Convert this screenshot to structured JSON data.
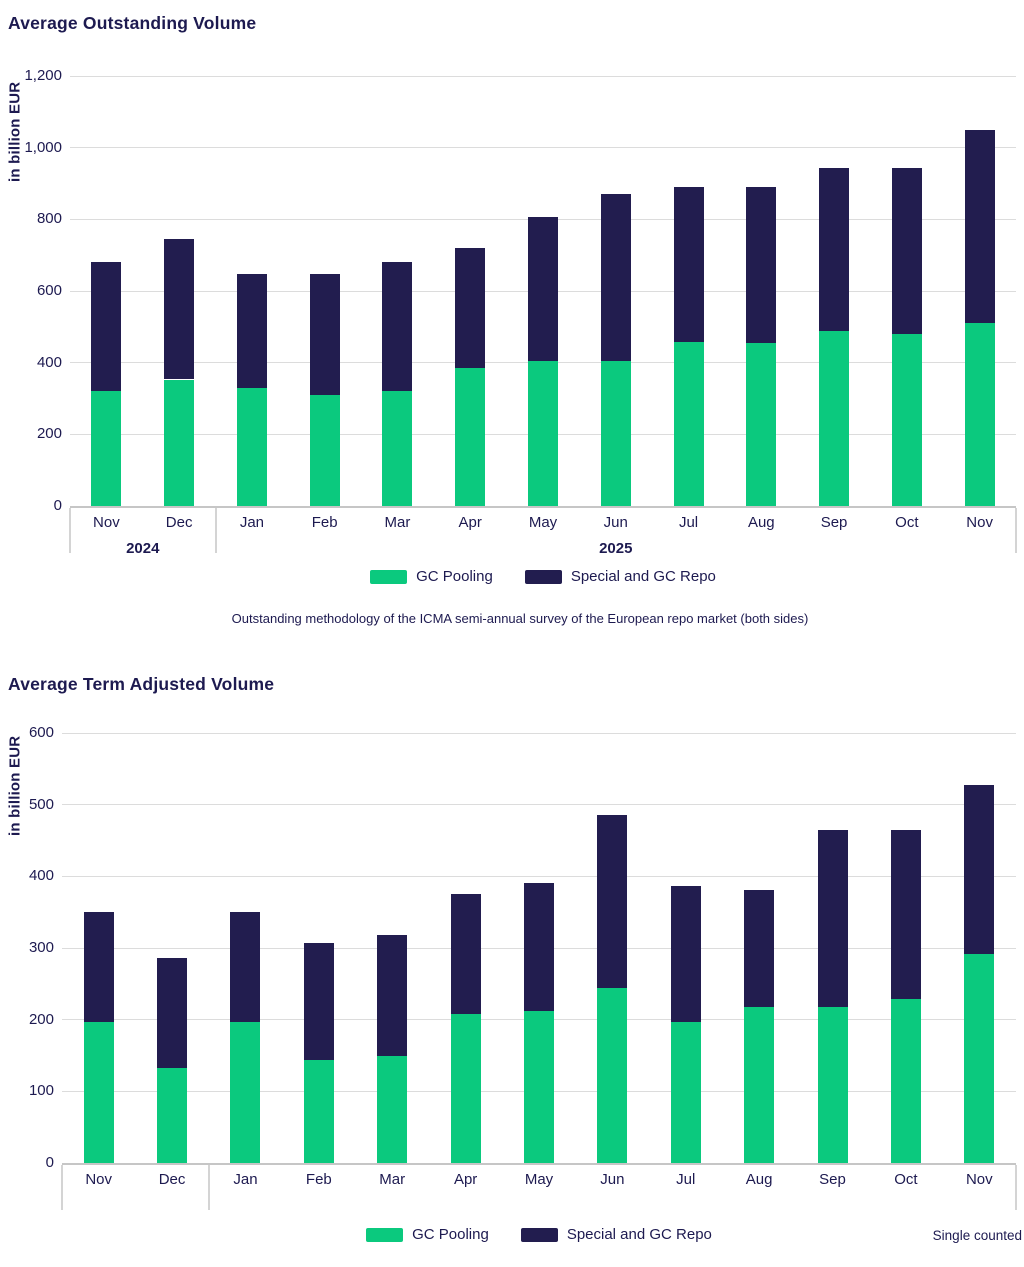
{
  "colors": {
    "gc_pooling": "#0bc97e",
    "special_gc_repo": "#221d4f",
    "text": "#1d1a50",
    "gridline": "#dcdcdc",
    "axis_line": "#c6c6c6"
  },
  "top_chart": {
    "title": "Average Outstanding Volume",
    "y_axis_label": "in billion EUR",
    "legend": {
      "gc_pooling": "GC Pooling",
      "special_gc_repo": "Special and GC Repo"
    },
    "footnote": "Outstanding methodology of the ICMA semi-annual survey of the European repo market (both sides)"
  },
  "bottom_chart": {
    "title": "Average Term Adjusted Volume",
    "y_axis_label": "in billion EUR",
    "legend": {
      "gc_pooling": "GC Pooling",
      "special_gc_repo": "Special and GC Repo"
    },
    "note_right": "Single counted"
  },
  "chart_data": [
    {
      "type": "bar",
      "stacked": true,
      "title": "Average Outstanding Volume",
      "ylabel": "in billion EUR",
      "categories": [
        "Nov",
        "Dec",
        "Jan",
        "Feb",
        "Mar",
        "Apr",
        "May",
        "Jun",
        "Jul",
        "Aug",
        "Sep",
        "Oct",
        "Nov"
      ],
      "year_groups": [
        {
          "label": "2024",
          "from": 0,
          "to": 1
        },
        {
          "label": "2025",
          "from": 2,
          "to": 12
        }
      ],
      "series": [
        {
          "name": "GC Pooling",
          "color_key": "gc_pooling",
          "values": [
            320,
            353,
            330,
            310,
            320,
            384,
            406,
            405,
            458,
            456,
            488,
            479,
            510
          ]
        },
        {
          "name": "Special and GC Repo",
          "color_key": "special_gc_repo",
          "values": [
            360,
            391,
            318,
            338,
            360,
            337,
            400,
            465,
            433,
            435,
            456,
            465,
            538
          ]
        }
      ],
      "totals": [
        680,
        744,
        648,
        648,
        680,
        721,
        806,
        870,
        891,
        891,
        944,
        944,
        1048
      ],
      "ylim": [
        0,
        1200
      ],
      "ytick_step": 200,
      "ytick_labels": [
        "0",
        "200",
        "400",
        "600",
        "800",
        "1,000",
        "1,200"
      ],
      "grid": true,
      "legend_position": "bottom"
    },
    {
      "type": "bar",
      "stacked": true,
      "title": "Average Term Adjusted Volume",
      "ylabel": "in billion EUR",
      "categories": [
        "Nov",
        "Dec",
        "Jan",
        "Feb",
        "Mar",
        "Apr",
        "May",
        "Jun",
        "Jul",
        "Aug",
        "Sep",
        "Oct",
        "Nov"
      ],
      "year_groups": [],
      "series": [
        {
          "name": "GC Pooling",
          "color_key": "gc_pooling",
          "values": [
            197,
            133,
            197,
            144,
            149,
            208,
            212,
            244,
            197,
            218,
            218,
            229,
            291
          ]
        },
        {
          "name": "Special and GC Repo",
          "color_key": "special_gc_repo",
          "values": [
            153,
            153,
            153,
            163,
            169,
            168,
            179,
            242,
            189,
            163,
            247,
            236,
            236
          ]
        }
      ],
      "totals": [
        350,
        286,
        350,
        307,
        318,
        376,
        391,
        486,
        386,
        381,
        465,
        465,
        527
      ],
      "ylim": [
        0,
        600
      ],
      "ytick_step": 100,
      "ytick_labels": [
        "0",
        "100",
        "200",
        "300",
        "400",
        "500",
        "600"
      ],
      "grid": true,
      "legend_position": "bottom"
    }
  ]
}
